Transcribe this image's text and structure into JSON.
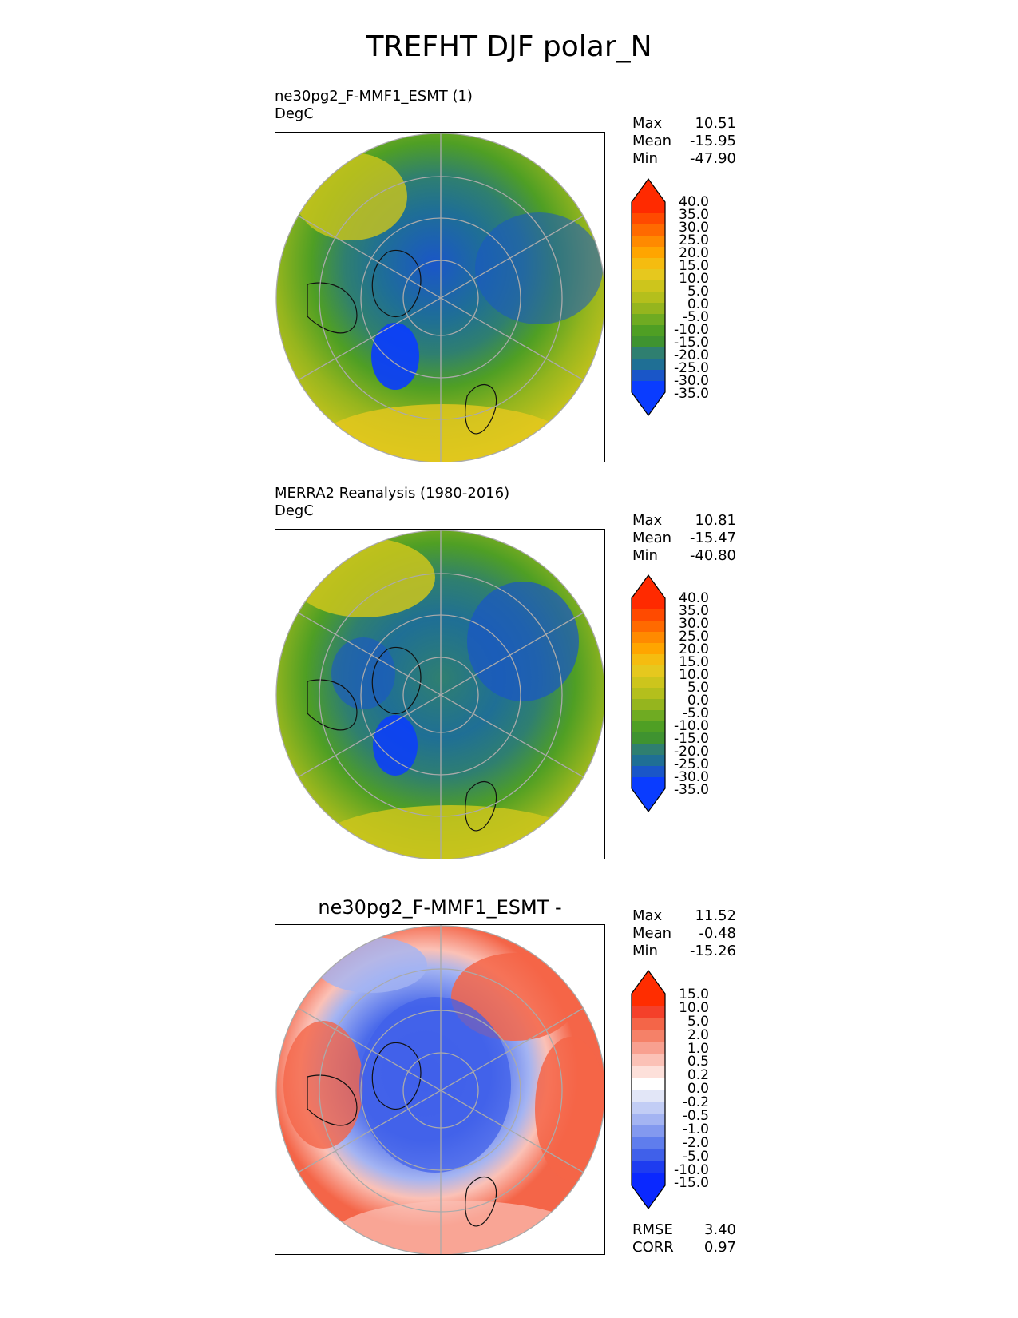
{
  "figure_title": "TREFHT DJF polar_N",
  "panels": [
    {
      "title_line1": "ne30pg2_F-MMF1_ESMT (1)",
      "title_line2": "DegC",
      "stats": {
        "max_label": "Max",
        "max": "10.51",
        "mean_label": "Mean",
        "mean": "-15.95",
        "min_label": "Min",
        "min": "-47.90"
      },
      "colorbar_ticks": [
        "40.0",
        "35.0",
        "30.0",
        "25.0",
        "20.0",
        "15.0",
        "10.0",
        "5.0",
        "0.0",
        "-5.0",
        "-10.0",
        "-15.0",
        "-20.0",
        "-25.0",
        "-30.0",
        "-35.0"
      ]
    },
    {
      "title_line1": "MERRA2 Reanalysis (1980-2016)",
      "title_line2": "DegC",
      "stats": {
        "max_label": "Max",
        "max": "10.81",
        "mean_label": "Mean",
        "mean": "-15.47",
        "min_label": "Min",
        "min": "-40.80"
      },
      "colorbar_ticks": [
        "40.0",
        "35.0",
        "30.0",
        "25.0",
        "20.0",
        "15.0",
        "10.0",
        "5.0",
        "0.0",
        "-5.0",
        "-10.0",
        "-15.0",
        "-20.0",
        "-25.0",
        "-30.0",
        "-35.0"
      ]
    },
    {
      "title": "ne30pg2_F-MMF1_ESMT -",
      "stats": {
        "max_label": "Max",
        "max": "11.52",
        "mean_label": "Mean",
        "mean": "-0.48",
        "min_label": "Min",
        "min": "-15.26"
      },
      "colorbar_ticks": [
        "15.0",
        "10.0",
        "5.0",
        "2.0",
        "1.0",
        "0.5",
        "0.2",
        "0.0",
        "-0.2",
        "-0.5",
        "-1.0",
        "-2.0",
        "-5.0",
        "-10.0",
        "-15.0"
      ],
      "metrics": {
        "rmse_label": "RMSE",
        "rmse": "3.40",
        "corr_label": "CORR",
        "corr": "0.97"
      }
    }
  ],
  "colors": {
    "temp_scale": [
      "#ff2a00",
      "#ff4a00",
      "#ff6a00",
      "#ff8a00",
      "#ffa500",
      "#f5bc10",
      "#e6c81e",
      "#cdc51c",
      "#b4bf1c",
      "#95b51e",
      "#6fab22",
      "#4f9f24",
      "#3f9330",
      "#2f7f70",
      "#1f6f95",
      "#1a56c8",
      "#0a3cff"
    ],
    "diff_scale": [
      "#ff2d00",
      "#f4402a",
      "#f46548",
      "#f58168",
      "#f8a090",
      "#fbc1b6",
      "#fde0da",
      "#ffffff",
      "#e2e6f7",
      "#c2cdf5",
      "#a4b4f2",
      "#8399ef",
      "#5f7ded",
      "#4060ea",
      "#1e3cf0",
      "#0a28ff"
    ]
  }
}
